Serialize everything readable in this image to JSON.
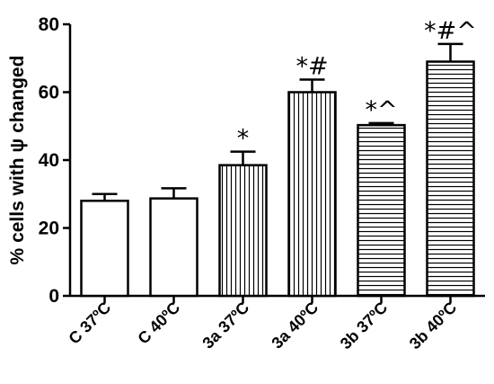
{
  "chart_data": {
    "type": "bar",
    "categories": [
      "C 37ºC",
      "C 40ºC",
      "3a 37ºC",
      "3a 40ºC",
      "3b 37ºC",
      "3b 40ºC"
    ],
    "values": [
      28,
      28.7,
      38.5,
      60,
      50.3,
      69
    ],
    "errors": [
      2,
      3,
      4,
      3.7,
      0.6,
      5.2
    ],
    "patterns": [
      "solid",
      "solid",
      "vertical",
      "vertical",
      "horizontal",
      "horizontal"
    ],
    "significance": [
      "",
      "",
      "*",
      "*#",
      "*^",
      "*#^"
    ],
    "xlabel": "",
    "ylabel": "% cells with ψ changed",
    "ylim": [
      0,
      80
    ],
    "yticks": [
      0,
      20,
      40,
      60,
      80
    ],
    "title": "",
    "grid": false,
    "colors": {
      "bar_fill": "#ffffff",
      "bar_stroke": "#000000",
      "hatch": "#000000"
    }
  }
}
